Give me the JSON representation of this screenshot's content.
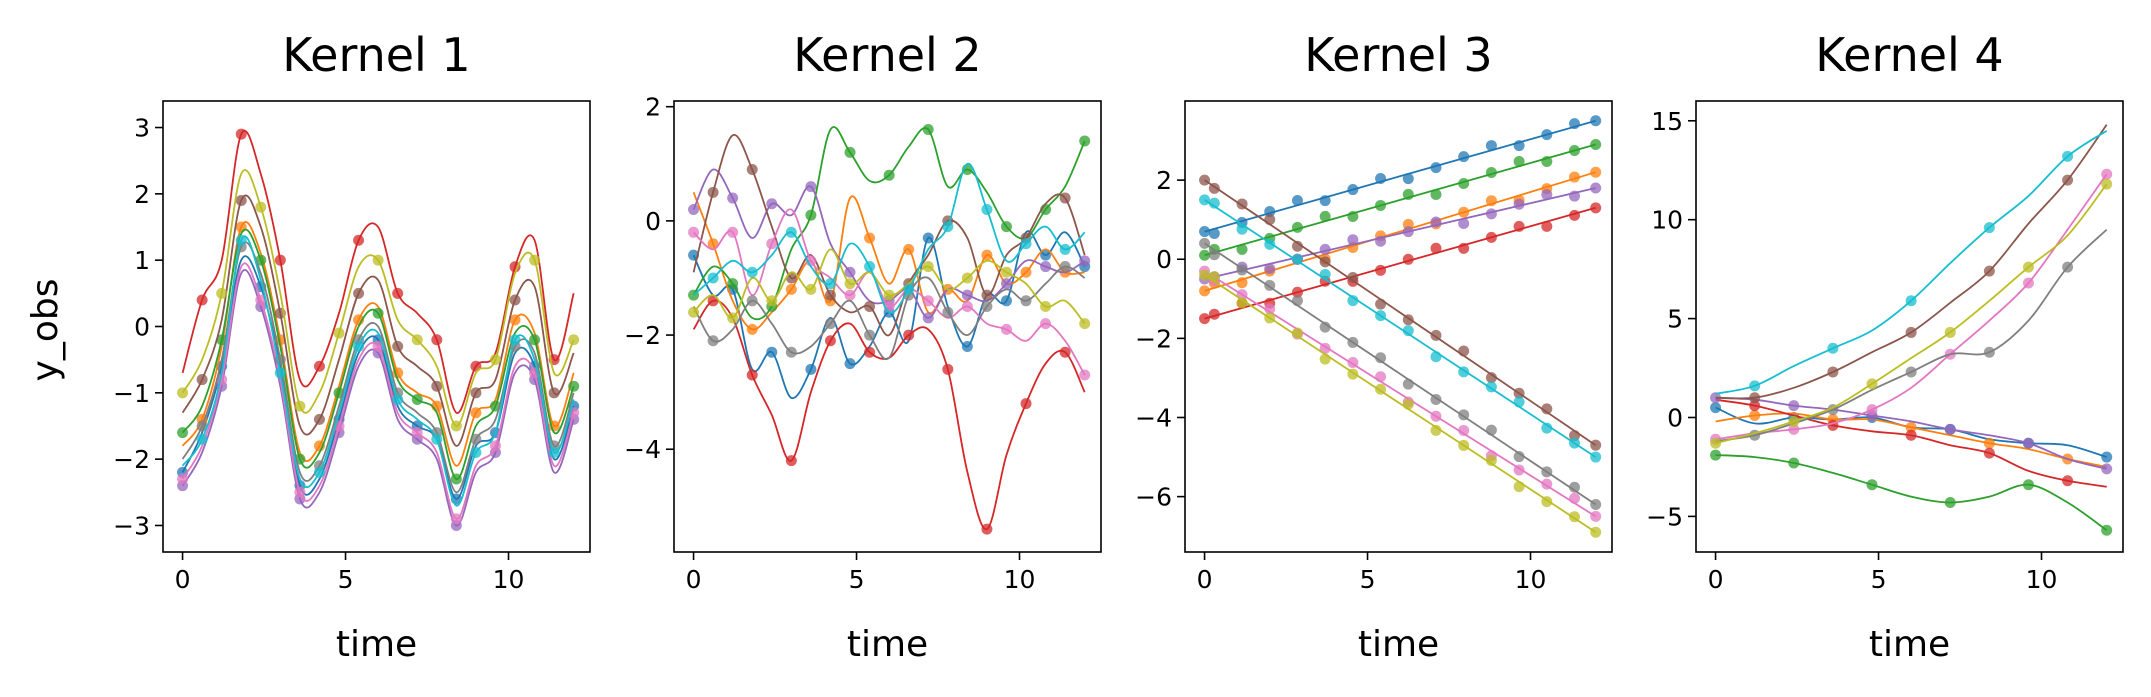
{
  "palette": [
    "#1f77b4",
    "#ff7f0e",
    "#2ca02c",
    "#d62728",
    "#9467bd",
    "#8c564b",
    "#e377c2",
    "#7f7f7f",
    "#bcbd22",
    "#17becf"
  ],
  "figure": {
    "ylabel": "y_obs"
  },
  "chart_data": [
    {
      "type": "line",
      "title": "Kernel 1",
      "xlabel": "time",
      "ylabel": "y_obs",
      "xlim": [
        -0.6,
        12.5
      ],
      "ylim": [
        -3.4,
        3.4
      ],
      "xticks": [
        0,
        5,
        10
      ],
      "xtick_labels": [
        "0",
        "5",
        "10"
      ],
      "yticks": [
        -3,
        -2,
        -1,
        0,
        1,
        2,
        3
      ],
      "ytick_labels": [
        "−3",
        "−2",
        "−1",
        "0",
        "1",
        "2",
        "3"
      ],
      "grid": false,
      "legend": "none",
      "x": [
        0,
        0.6,
        1.2,
        1.8,
        2.4,
        3.0,
        3.6,
        4.2,
        4.8,
        5.4,
        6.0,
        6.6,
        7.2,
        7.8,
        8.4,
        9.0,
        9.6,
        10.2,
        10.8,
        11.4,
        12.0
      ],
      "series": [
        {
          "values": [
            -2.2,
            -1.6,
            -0.6,
            1.0,
            0.6,
            -0.6,
            -2.4,
            -2.3,
            -1.4,
            -0.4,
            -0.2,
            -1.2,
            -1.5,
            -1.7,
            -2.6,
            -1.8,
            -1.6,
            -0.4,
            -0.6,
            -2.0,
            -1.2
          ]
        },
        {
          "values": [
            -1.8,
            -1.4,
            -0.3,
            1.5,
            1.1,
            -0.2,
            -1.9,
            -1.8,
            -0.9,
            0.1,
            0.3,
            -0.7,
            -1.0,
            -1.2,
            -2.1,
            -1.3,
            -1.1,
            0.1,
            -0.1,
            -1.5,
            -0.7
          ]
        },
        {
          "values": [
            -1.6,
            -1.2,
            -0.2,
            1.4,
            1.0,
            -0.3,
            -2.0,
            -1.9,
            -1.0,
            0.0,
            0.2,
            -0.8,
            -1.1,
            -1.3,
            -2.3,
            -1.5,
            -1.2,
            -0.1,
            -0.2,
            -1.6,
            -0.9
          ]
        },
        {
          "values": [
            -0.7,
            0.4,
            1.0,
            2.9,
            2.3,
            1.0,
            -0.8,
            -0.6,
            0.2,
            1.3,
            1.5,
            0.5,
            0.2,
            -0.2,
            -1.3,
            -0.6,
            -0.4,
            0.9,
            1.3,
            -0.5,
            0.5
          ]
        },
        {
          "values": [
            -2.4,
            -1.9,
            -0.9,
            0.8,
            0.3,
            -0.9,
            -2.6,
            -2.5,
            -1.6,
            -0.6,
            -0.4,
            -1.4,
            -1.7,
            -2.0,
            -3.0,
            -2.2,
            -1.9,
            -0.7,
            -0.8,
            -2.2,
            -1.4
          ]
        },
        {
          "values": [
            -1.3,
            -0.8,
            0.1,
            1.9,
            1.5,
            0.2,
            -1.5,
            -1.4,
            -0.5,
            0.5,
            0.7,
            -0.3,
            -0.6,
            -0.9,
            -1.8,
            -1.0,
            -0.8,
            0.4,
            0.6,
            -1.0,
            -0.4
          ]
        },
        {
          "values": [
            -2.3,
            -1.8,
            -0.8,
            0.9,
            0.4,
            -0.8,
            -2.5,
            -2.4,
            -1.5,
            -0.5,
            -0.3,
            -1.3,
            -1.6,
            -1.9,
            -2.9,
            -2.1,
            -1.8,
            -0.6,
            -0.7,
            -2.1,
            -1.3
          ]
        },
        {
          "values": [
            -2.0,
            -1.5,
            -0.5,
            1.2,
            0.8,
            -0.5,
            -2.2,
            -2.1,
            -1.2,
            -0.2,
            0.0,
            -1.0,
            -1.3,
            -1.6,
            -2.5,
            -1.7,
            -1.4,
            -0.3,
            -0.4,
            -1.8,
            -1.0
          ]
        },
        {
          "values": [
            -1.0,
            -0.5,
            0.5,
            2.3,
            1.8,
            0.5,
            -1.2,
            -1.0,
            -0.1,
            0.9,
            1.0,
            0.1,
            -0.2,
            -0.6,
            -1.5,
            -0.7,
            -0.5,
            0.8,
            1.0,
            -0.7,
            -0.2
          ]
        },
        {
          "values": [
            -2.1,
            -1.7,
            -0.7,
            1.3,
            0.7,
            -0.7,
            -2.3,
            -2.2,
            -1.3,
            -0.3,
            -0.1,
            -1.1,
            -1.4,
            -1.7,
            -2.7,
            -1.9,
            -1.6,
            -0.2,
            -0.5,
            -1.9,
            -1.1
          ]
        }
      ]
    },
    {
      "type": "line",
      "title": "Kernel 2",
      "xlabel": "time",
      "ylabel": "",
      "xlim": [
        -0.6,
        12.5
      ],
      "ylim": [
        -5.8,
        2.1
      ],
      "xticks": [
        0,
        5,
        10
      ],
      "xtick_labels": [
        "0",
        "5",
        "10"
      ],
      "yticks": [
        -4,
        -2,
        0,
        2
      ],
      "ytick_labels": [
        "−4",
        "−2",
        "0",
        "2"
      ],
      "grid": false,
      "legend": "none",
      "x": [
        0,
        0.6,
        1.2,
        1.8,
        2.4,
        3.0,
        3.6,
        4.2,
        4.8,
        5.4,
        6.0,
        6.6,
        7.2,
        7.8,
        8.4,
        9.0,
        9.6,
        10.2,
        10.8,
        11.4,
        12.0
      ],
      "series": [
        {
          "values": [
            -0.6,
            -1.3,
            -1.2,
            -2.6,
            -2.3,
            -3.1,
            -2.6,
            -1.7,
            -2.5,
            -2.2,
            -1.6,
            -2.1,
            -0.3,
            -1.5,
            -2.2,
            -1.3,
            -1.4,
            -0.2,
            -0.6,
            -0.2,
            -0.8
          ]
        },
        {
          "values": [
            0.5,
            -0.4,
            -1.4,
            -1.9,
            -1.6,
            -1.2,
            -0.7,
            -1.4,
            0.4,
            -0.3,
            -1.1,
            -0.5,
            -1.6,
            -1.2,
            -1.4,
            -0.6,
            -1.1,
            -0.9,
            -0.5,
            -0.9,
            -0.9
          ]
        },
        {
          "values": [
            -1.3,
            -0.8,
            -1.1,
            -1.7,
            -1.5,
            -0.5,
            0.1,
            1.6,
            1.2,
            0.7,
            0.8,
            1.3,
            1.6,
            0.6,
            0.9,
            0.5,
            -0.1,
            -0.3,
            0.2,
            0.6,
            1.4
          ]
        },
        {
          "values": [
            -1.9,
            -1.4,
            -1.7,
            -2.7,
            -3.4,
            -4.2,
            -3.0,
            -2.1,
            -1.8,
            -2.3,
            -2.4,
            -2.0,
            -1.9,
            -2.6,
            -4.4,
            -5.4,
            -4.1,
            -3.2,
            -2.5,
            -2.3,
            -3.0
          ]
        },
        {
          "values": [
            0.2,
            0.9,
            0.4,
            -0.3,
            0.3,
            0.1,
            0.6,
            -0.4,
            -0.9,
            -1.4,
            -1.4,
            -1.2,
            -1.7,
            -1.2,
            -1.3,
            -1.4,
            -1.1,
            -0.7,
            -0.8,
            -0.9,
            -0.7
          ]
        },
        {
          "values": [
            -0.9,
            0.5,
            1.5,
            0.9,
            -0.1,
            -1.0,
            -0.6,
            -1.3,
            -1.6,
            -1.5,
            -2.0,
            -1.1,
            -0.6,
            0.0,
            -0.3,
            -1.3,
            -0.6,
            -0.3,
            0.3,
            0.4,
            -0.6
          ]
        },
        {
          "values": [
            -0.2,
            -0.5,
            -0.2,
            -1.3,
            -0.4,
            0.2,
            -0.7,
            -1.0,
            -1.3,
            -0.9,
            -1.5,
            -1.2,
            -1.4,
            -1.7,
            -1.5,
            -1.8,
            -1.9,
            -2.1,
            -1.8,
            -2.1,
            -2.7
          ]
        },
        {
          "values": [
            -1.5,
            -2.1,
            -1.9,
            -1.4,
            -1.8,
            -2.3,
            -2.2,
            -1.8,
            -1.4,
            -2.0,
            -2.4,
            -1.3,
            -1.0,
            -1.6,
            -2.0,
            -1.5,
            -1.2,
            -1.4,
            -1.1,
            -0.8,
            -1.0
          ]
        },
        {
          "values": [
            -1.6,
            -1.3,
            -1.7,
            -1.0,
            -1.4,
            -0.9,
            -1.2,
            -0.5,
            -1.1,
            -0.9,
            -1.3,
            -1.1,
            -0.8,
            -1.2,
            -1.0,
            -0.7,
            -0.9,
            -1.1,
            -1.5,
            -1.4,
            -1.8
          ]
        },
        {
          "values": [
            -1.3,
            -1.0,
            -0.7,
            -0.9,
            -0.6,
            -0.2,
            -0.8,
            -1.1,
            -0.4,
            -0.8,
            -1.6,
            -1.2,
            -0.5,
            -0.1,
            1.0,
            0.2,
            -0.7,
            -0.4,
            -0.1,
            -0.5,
            -0.2
          ]
        }
      ]
    },
    {
      "type": "line",
      "title": "Kernel 3",
      "xlabel": "time",
      "ylabel": "",
      "xlim": [
        -0.6,
        12.5
      ],
      "ylim": [
        -7.4,
        4.0
      ],
      "xticks": [
        0,
        5,
        10
      ],
      "xtick_labels": [
        "0",
        "5",
        "10"
      ],
      "yticks": [
        -6,
        -4,
        -2,
        0,
        2
      ],
      "ytick_labels": [
        "−6",
        "−4",
        "−2",
        "0",
        "2"
      ],
      "grid": false,
      "legend": "none",
      "x": [
        0,
        12
      ],
      "series": [
        {
          "values": [
            0.7,
            3.5
          ]
        },
        {
          "values": [
            -0.8,
            2.2
          ]
        },
        {
          "values": [
            0.1,
            2.9
          ]
        },
        {
          "values": [
            -1.5,
            1.3
          ]
        },
        {
          "values": [
            -0.5,
            1.8
          ]
        },
        {
          "values": [
            2.0,
            -4.7
          ]
        },
        {
          "values": [
            -0.3,
            -6.5
          ]
        },
        {
          "values": [
            0.4,
            -6.2
          ]
        },
        {
          "values": [
            -0.4,
            -6.9
          ]
        },
        {
          "values": [
            1.5,
            -5.0
          ]
        }
      ]
    },
    {
      "type": "line",
      "title": "Kernel 4",
      "xlabel": "time",
      "ylabel": "",
      "xlim": [
        -0.6,
        12.5
      ],
      "ylim": [
        -6.8,
        16.0
      ],
      "xticks": [
        0,
        5,
        10
      ],
      "xtick_labels": [
        "0",
        "5",
        "10"
      ],
      "yticks": [
        -5,
        0,
        5,
        10,
        15
      ],
      "ytick_labels": [
        "−5",
        "0",
        "5",
        "10",
        "15"
      ],
      "grid": false,
      "legend": "none",
      "x": [
        0,
        1.2,
        2.4,
        3.6,
        4.8,
        6.0,
        7.2,
        8.4,
        9.6,
        10.8,
        12.0
      ],
      "series": [
        {
          "values": [
            0.5,
            -0.3,
            0.0,
            -0.1,
            0.0,
            -0.5,
            -0.6,
            -1.1,
            -1.3,
            -1.4,
            -2.0
          ]
        },
        {
          "values": [
            -0.2,
            0.1,
            0.2,
            -0.1,
            -0.1,
            -0.5,
            -0.9,
            -1.3,
            -1.6,
            -2.1,
            -2.5
          ]
        },
        {
          "values": [
            -1.9,
            -2.0,
            -2.3,
            -2.8,
            -3.4,
            -4.0,
            -4.3,
            -4.0,
            -3.4,
            -4.3,
            -5.7
          ]
        },
        {
          "values": [
            0.9,
            0.6,
            0.1,
            -0.4,
            -0.7,
            -0.9,
            -1.4,
            -1.8,
            -2.7,
            -3.2,
            -3.5
          ]
        },
        {
          "values": [
            1.0,
            0.9,
            0.6,
            0.4,
            0.1,
            -0.2,
            -0.6,
            -0.9,
            -1.3,
            -2.1,
            -2.6
          ]
        },
        {
          "values": [
            1.0,
            1.0,
            1.5,
            2.3,
            3.3,
            4.3,
            5.8,
            7.4,
            9.8,
            12.0,
            14.8
          ]
        },
        {
          "values": [
            -1.1,
            -0.8,
            -0.6,
            -0.3,
            0.4,
            1.5,
            3.2,
            4.9,
            6.8,
            9.5,
            12.3
          ]
        },
        {
          "values": [
            -1.2,
            -0.9,
            -0.3,
            0.4,
            1.4,
            2.3,
            3.2,
            3.3,
            4.9,
            7.6,
            9.5
          ]
        },
        {
          "values": [
            -1.3,
            -0.8,
            -0.2,
            0.5,
            1.7,
            3.0,
            4.3,
            5.9,
            7.6,
            9.2,
            11.8
          ]
        },
        {
          "values": [
            1.2,
            1.6,
            2.6,
            3.5,
            4.4,
            5.9,
            7.8,
            9.6,
            11.2,
            13.2,
            14.5
          ]
        }
      ]
    }
  ]
}
